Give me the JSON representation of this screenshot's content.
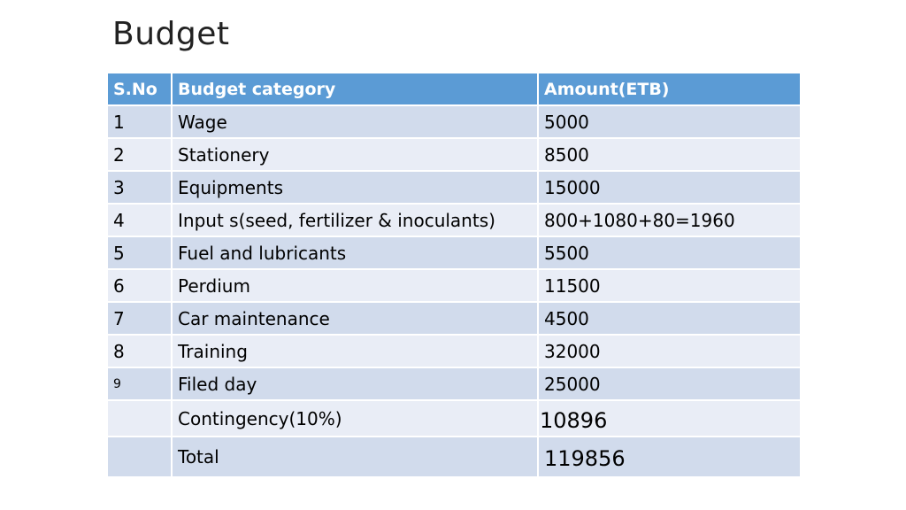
{
  "title": "Budget",
  "table": {
    "headers": {
      "sno": "S.No",
      "category": "Budget category",
      "amount": "Amount(ETB)"
    },
    "rows": [
      {
        "sno": "1",
        "category": "Wage",
        "amount": "5000"
      },
      {
        "sno": "2",
        "category": "Stationery",
        "amount": "8500"
      },
      {
        "sno": "3",
        "category": "Equipments",
        "amount": "15000"
      },
      {
        "sno": "4",
        "category": "Input s(seed, fertilizer & inoculants)",
        "amount": "800+1080+80=1960"
      },
      {
        "sno": "5",
        "category": "Fuel and lubricants",
        "amount": "5500"
      },
      {
        "sno": "6",
        "category": "Perdium",
        "amount": "11500"
      },
      {
        "sno": "7",
        "category": "Car maintenance",
        "amount": "4500"
      },
      {
        "sno": "8",
        "category": "Training",
        "amount": "32000"
      },
      {
        "sno": "9",
        "category": "Filed day",
        "amount": "25000"
      },
      {
        "sno": "",
        "category": "Contingency(10%)",
        "amount": "10896"
      },
      {
        "sno": "",
        "category": "Total",
        "amount": "119856"
      }
    ]
  }
}
